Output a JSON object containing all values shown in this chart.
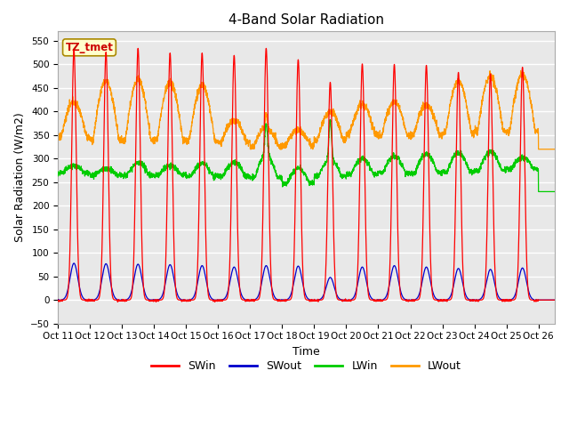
{
  "title": "4-Band Solar Radiation",
  "xlabel": "Time",
  "ylabel": "Solar Radiation (W/m2)",
  "ylim": [
    -50,
    570
  ],
  "yticks": [
    -50,
    0,
    50,
    100,
    150,
    200,
    250,
    300,
    350,
    400,
    450,
    500,
    550
  ],
  "xlim": [
    0,
    15.5
  ],
  "xtick_labels": [
    "Oct 11",
    "Oct 12",
    "Oct 13",
    "Oct 14",
    "Oct 15",
    "Oct 16",
    "Oct 17",
    "Oct 18",
    "Oct 19",
    "Oct 20",
    "Oct 21",
    "Oct 22",
    "Oct 23",
    "Oct 24",
    "Oct 25",
    "Oct 26"
  ],
  "xtick_positions": [
    0,
    1,
    2,
    3,
    4,
    5,
    6,
    7,
    8,
    9,
    10,
    11,
    12,
    13,
    14,
    15
  ],
  "colors": {
    "SWin": "#ff0000",
    "SWout": "#0000cc",
    "LWin": "#00cc00",
    "LWout": "#ff9900"
  },
  "label_box_text": "TZ_tmet",
  "label_box_color": "#ffffcc",
  "label_box_edge": "#aa8800",
  "label_text_color": "#cc0000",
  "background_color": "#e8e8e8",
  "grid_color": "#ffffff",
  "title_fontsize": 11,
  "axis_label_fontsize": 9,
  "sw_peaks": [
    530,
    526,
    534,
    524,
    524,
    519,
    534,
    510,
    462,
    501,
    500,
    498,
    483,
    480,
    494
  ],
  "sw_out_peaks": [
    78,
    77,
    76,
    75,
    73,
    70,
    73,
    72,
    48,
    70,
    73,
    70,
    67,
    65,
    68
  ],
  "lw_in_night": [
    270,
    265,
    265,
    265,
    262,
    262,
    260,
    247,
    263,
    267,
    270,
    270,
    272,
    275,
    278
  ],
  "lw_in_day": [
    285,
    278,
    290,
    285,
    290,
    292,
    308,
    280,
    298,
    300,
    305,
    310,
    312,
    315,
    302
  ],
  "lw_out_night": [
    345,
    340,
    338,
    340,
    338,
    335,
    325,
    328,
    340,
    350,
    348,
    350,
    355,
    358,
    358
  ],
  "lw_out_day": [
    420,
    465,
    468,
    462,
    455,
    380,
    365,
    360,
    400,
    415,
    420,
    415,
    465,
    475,
    480
  ],
  "lw_in_spike_day": 6,
  "lw_in_spike_val": 375,
  "lw_in_spike2_day": 8,
  "lw_in_spike2_val": 380,
  "legend_entries": [
    "SWin",
    "SWout",
    "LWin",
    "LWout"
  ]
}
